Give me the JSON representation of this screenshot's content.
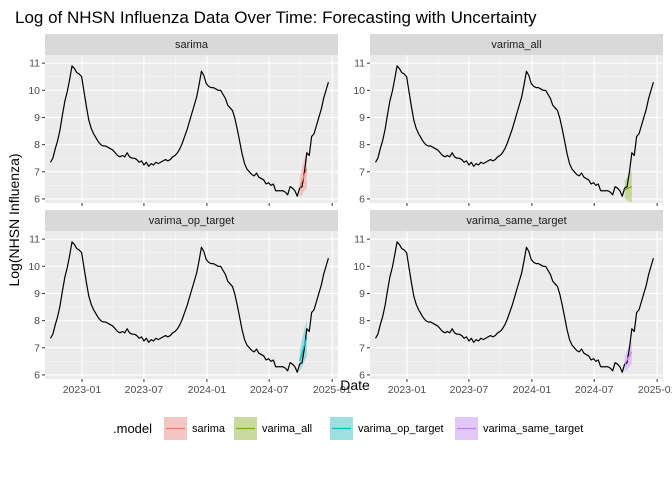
{
  "chart_data": {
    "type": "line",
    "title": "Log of NHSN Influenza Data Over Time: Forecasting with Uncertainty",
    "xlabel": "Date",
    "ylabel": "Log(NHSN Influenza)",
    "x_ticks": [
      "2023-01",
      "2023-07",
      "2024-01",
      "2024-07",
      "2025-01"
    ],
    "y_ticks": [
      6,
      7,
      8,
      9,
      10,
      11
    ],
    "xlim": [
      "2022-09-15",
      "2025-01-18"
    ],
    "ylim": [
      5.85,
      11.3
    ],
    "grid": true,
    "legend_position": "bottom",
    "legend": {
      "title": ".model",
      "items": [
        {
          "label": "sarima",
          "color": "#F8766D"
        },
        {
          "label": "varima_all",
          "color": "#7CAE00"
        },
        {
          "label": "varima_op_target",
          "color": "#00BFC4"
        },
        {
          "label": "varima_same_target",
          "color": "#C77CFF"
        }
      ]
    },
    "observed": {
      "name": "observed",
      "color": "#000000",
      "x": [
        "2022-10-01",
        "2022-10-08",
        "2022-10-15",
        "2022-10-22",
        "2022-10-29",
        "2022-11-05",
        "2022-11-12",
        "2022-11-19",
        "2022-11-26",
        "2022-12-03",
        "2022-12-10",
        "2022-12-17",
        "2022-12-24",
        "2022-12-31",
        "2023-01-07",
        "2023-01-14",
        "2023-01-21",
        "2023-01-28",
        "2023-02-04",
        "2023-02-11",
        "2023-02-18",
        "2023-02-25",
        "2023-03-04",
        "2023-03-11",
        "2023-03-18",
        "2023-03-25",
        "2023-04-01",
        "2023-04-08",
        "2023-04-15",
        "2023-04-22",
        "2023-04-29",
        "2023-05-06",
        "2023-05-13",
        "2023-05-20",
        "2023-05-27",
        "2023-06-03",
        "2023-06-10",
        "2023-06-17",
        "2023-06-24",
        "2023-07-01",
        "2023-07-08",
        "2023-07-15",
        "2023-07-22",
        "2023-07-29",
        "2023-08-05",
        "2023-08-12",
        "2023-08-19",
        "2023-08-26",
        "2023-09-02",
        "2023-09-09",
        "2023-09-16",
        "2023-09-23",
        "2023-09-30",
        "2023-10-07",
        "2023-10-14",
        "2023-10-21",
        "2023-10-28",
        "2023-11-04",
        "2023-11-11",
        "2023-11-18",
        "2023-11-25",
        "2023-12-02",
        "2023-12-09",
        "2023-12-16",
        "2023-12-23",
        "2023-12-30",
        "2024-01-06",
        "2024-01-13",
        "2024-01-20",
        "2024-01-27",
        "2024-02-03",
        "2024-02-10",
        "2024-02-17",
        "2024-02-24",
        "2024-03-02",
        "2024-03-09",
        "2024-03-16",
        "2024-03-23",
        "2024-03-30",
        "2024-04-06",
        "2024-04-13",
        "2024-04-20",
        "2024-04-27",
        "2024-05-04",
        "2024-05-11",
        "2024-05-18",
        "2024-05-25",
        "2024-06-01",
        "2024-06-08",
        "2024-06-15",
        "2024-06-22",
        "2024-06-29",
        "2024-07-06",
        "2024-07-13",
        "2024-07-20",
        "2024-07-27",
        "2024-08-03",
        "2024-08-10",
        "2024-08-17",
        "2024-08-24",
        "2024-08-31",
        "2024-09-07",
        "2024-09-14",
        "2024-09-21",
        "2024-09-28",
        "2024-10-05",
        "2024-10-12",
        "2024-10-19",
        "2024-10-26",
        "2024-11-02",
        "2024-11-09",
        "2024-11-16",
        "2024-11-23",
        "2024-11-30",
        "2024-12-07",
        "2024-12-14",
        "2024-12-21"
      ],
      "y": [
        7.35,
        7.5,
        7.85,
        8.15,
        8.55,
        9.1,
        9.6,
        9.95,
        10.4,
        10.9,
        10.8,
        10.65,
        10.6,
        10.5,
        9.95,
        9.4,
        8.9,
        8.6,
        8.4,
        8.25,
        8.1,
        8.0,
        7.95,
        7.95,
        7.9,
        7.85,
        7.8,
        7.7,
        7.6,
        7.55,
        7.6,
        7.55,
        7.7,
        7.55,
        7.5,
        7.5,
        7.45,
        7.35,
        7.4,
        7.25,
        7.35,
        7.2,
        7.3,
        7.25,
        7.35,
        7.3,
        7.35,
        7.4,
        7.45,
        7.4,
        7.45,
        7.55,
        7.6,
        7.7,
        7.85,
        8.05,
        8.3,
        8.55,
        8.85,
        9.15,
        9.45,
        9.75,
        10.2,
        10.7,
        10.55,
        10.25,
        10.15,
        10.1,
        10.1,
        10.05,
        10.0,
        10.0,
        9.85,
        9.7,
        9.45,
        9.35,
        9.25,
        8.95,
        8.55,
        8.1,
        7.65,
        7.3,
        7.1,
        7.0,
        6.9,
        6.85,
        6.95,
        6.8,
        6.75,
        6.7,
        6.55,
        6.6,
        6.5,
        6.55,
        6.3,
        6.3,
        6.3,
        6.3,
        6.25,
        6.15,
        6.45,
        6.4,
        6.3,
        6.1,
        6.4,
        6.45,
        7.0,
        7.7,
        7.6,
        8.3,
        8.4,
        8.7,
        9.0,
        9.3,
        9.7,
        10.0,
        10.3
      ]
    },
    "panels": [
      {
        "name": "sarima",
        "color": "#F8766D",
        "x": [
          "2024-09-28",
          "2024-10-05",
          "2024-10-12",
          "2024-10-19"
        ],
        "values": [
          6.4,
          6.65,
          6.9,
          7.1
        ],
        "lower": [
          6.05,
          6.15,
          6.3,
          6.4
        ],
        "upper": [
          6.75,
          7.15,
          7.5,
          7.8
        ]
      },
      {
        "name": "varima_all",
        "color": "#7CAE00",
        "x": [
          "2024-09-28",
          "2024-10-05",
          "2024-10-12",
          "2024-10-19"
        ],
        "values": [
          6.33,
          6.38,
          6.42,
          6.45
        ],
        "lower": [
          6.0,
          5.95,
          5.9,
          5.88
        ],
        "upper": [
          6.65,
          6.8,
          6.95,
          7.05
        ]
      },
      {
        "name": "varima_op_target",
        "color": "#00BFC4",
        "x": [
          "2024-09-28",
          "2024-10-05",
          "2024-10-12",
          "2024-10-19"
        ],
        "values": [
          6.5,
          6.8,
          7.1,
          7.4
        ],
        "lower": [
          6.1,
          6.3,
          6.5,
          6.7
        ],
        "upper": [
          6.9,
          7.3,
          7.7,
          8.05
        ]
      },
      {
        "name": "varima_same_target",
        "color": "#C77CFF",
        "x": [
          "2024-09-28",
          "2024-10-05",
          "2024-10-12",
          "2024-10-19"
        ],
        "values": [
          6.4,
          6.55,
          6.7,
          6.85
        ],
        "lower": [
          6.1,
          6.2,
          6.3,
          6.4
        ],
        "upper": [
          6.7,
          6.9,
          7.1,
          7.3
        ]
      }
    ]
  }
}
